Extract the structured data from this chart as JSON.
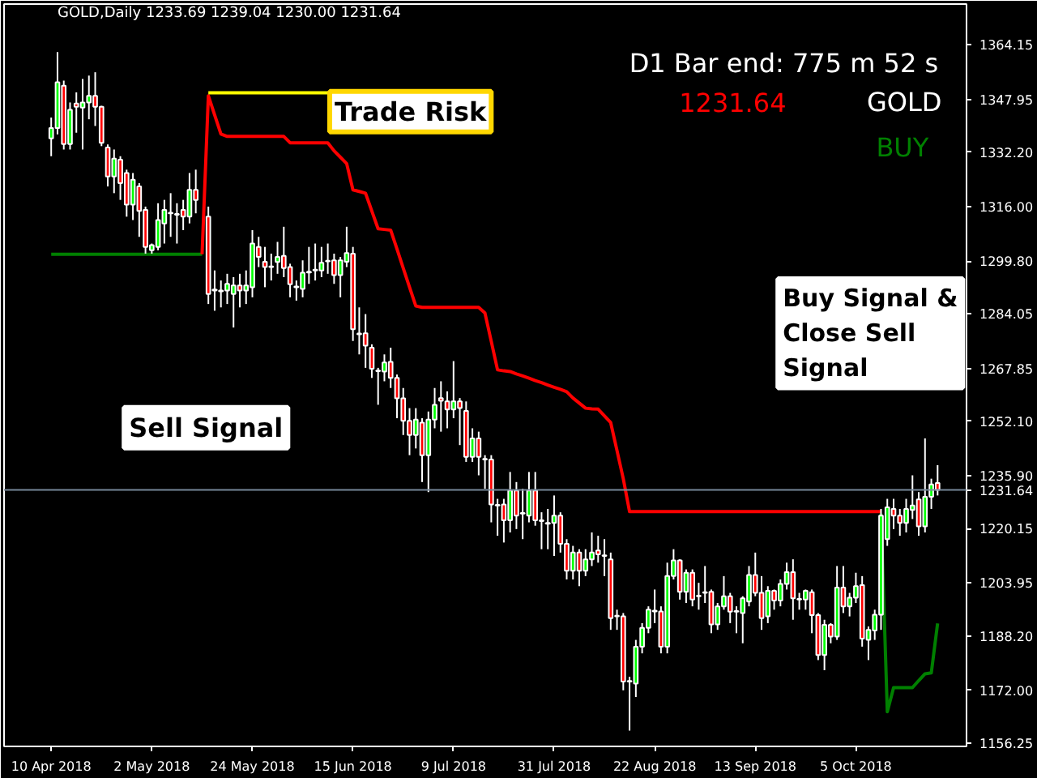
{
  "chart_data": {
    "type": "candlestick",
    "title": "D1 Bar end: 775 m 52 s",
    "annotations": [
      "GOLD,Daily 1233.69 1239.04 1230.00 1231.64",
      "1231.64",
      "GOLD",
      "BUY",
      "Trade Risk",
      "Sell Signal",
      "Buy Signal &\nClose   Sell\nSignal"
    ],
    "categories": [
      "10 Apr 2018",
      null,
      null,
      null,
      null,
      null,
      null,
      null,
      null,
      null,
      null,
      null,
      null,
      null,
      null,
      null,
      "2 May 2018",
      null,
      null,
      null,
      null,
      null,
      null,
      null,
      null,
      null,
      null,
      null,
      null,
      null,
      null,
      null,
      "24 May 2018",
      null,
      null,
      null,
      null,
      null,
      null,
      null,
      null,
      null,
      null,
      null,
      null,
      null,
      null,
      null,
      "15 Jun 2018",
      null,
      null,
      null,
      null,
      null,
      null,
      null,
      null,
      null,
      null,
      null,
      null,
      null,
      null,
      null,
      "9 Jul 2018",
      null,
      null,
      null,
      null,
      null,
      null,
      null,
      null,
      null,
      null,
      null,
      null,
      null,
      null,
      null,
      "31 Jul 2018",
      null,
      null,
      null,
      null,
      null,
      null,
      null,
      null,
      null,
      null,
      null,
      null,
      null,
      null,
      null,
      "22 Aug 2018",
      null,
      null,
      null,
      null,
      null,
      null,
      null,
      null,
      null,
      null,
      null,
      null,
      null,
      null,
      null,
      "13 Sep 2018",
      null,
      null,
      null,
      null,
      null,
      null,
      null,
      null,
      null,
      null,
      null,
      null,
      null,
      null,
      null,
      "5 Oct 2018",
      null,
      null,
      null,
      null,
      null,
      null,
      null,
      null,
      null,
      null,
      null,
      null,
      null
    ],
    "ohlc": [
      [
        1336.3,
        1342.5,
        1331,
        1339.4
      ],
      [
        1339.4,
        1362,
        1337.5,
        1353
      ],
      [
        1352,
        1353.5,
        1333,
        1334.6
      ],
      [
        1334.6,
        1347,
        1333,
        1344.8
      ],
      [
        1346.7,
        1350,
        1338,
        1345.7
      ],
      [
        1345.5,
        1354,
        1333,
        1347
      ],
      [
        1347,
        1355,
        1342,
        1349
      ],
      [
        1349,
        1356,
        1340,
        1345.7
      ],
      [
        1345.7,
        1346,
        1334,
        1335
      ],
      [
        1333.6,
        1334.5,
        1322,
        1325
      ],
      [
        1325,
        1333,
        1320,
        1330.3
      ],
      [
        1330,
        1331,
        1318,
        1323
      ],
      [
        1326,
        1327,
        1313,
        1316.6
      ],
      [
        1316.6,
        1326,
        1312,
        1324
      ],
      [
        1322,
        1323,
        1307,
        1314.7
      ],
      [
        1315,
        1316,
        1302,
        1304
      ],
      [
        1303,
        1305,
        1302,
        1304.5
      ],
      [
        1304,
        1317,
        1303,
        1312
      ],
      [
        1311,
        1318,
        1305,
        1315
      ],
      [
        1314,
        1320,
        1307,
        1314.2
      ],
      [
        1313.6,
        1317,
        1305,
        1313.8
      ],
      [
        1315,
        1318,
        1309,
        1313
      ],
      [
        1313,
        1326,
        1311,
        1321
      ],
      [
        1321,
        1327,
        1314,
        1318
      ],
      null,
      [
        1313,
        1316,
        1287,
        1290
      ],
      [
        1291,
        1297,
        1285,
        1291.3
      ],
      [
        1291,
        1294,
        1286,
        1290.8
      ],
      [
        1291,
        1296,
        1287,
        1293
      ],
      [
        1290,
        1295,
        1280,
        1292.5
      ],
      [
        1292.5,
        1296,
        1286,
        1291
      ],
      [
        1291,
        1297,
        1287,
        1292.5
      ],
      [
        1292,
        1309,
        1289,
        1305
      ],
      [
        1304,
        1307,
        1298,
        1301
      ],
      [
        1299.6,
        1304,
        1292,
        1298
      ],
      [
        1298,
        1302,
        1294,
        1298.2
      ],
      [
        1299.5,
        1305.5,
        1296,
        1301
      ],
      [
        1301.3,
        1310,
        1295,
        1297.7
      ],
      [
        1298,
        1299,
        1289,
        1292.9
      ],
      [
        1292,
        1294,
        1288,
        1292.2
      ],
      [
        1291.5,
        1300,
        1289,
        1296.3
      ],
      [
        1296.4,
        1304,
        1293,
        1296.6
      ],
      [
        1297,
        1305,
        1294,
        1297.2
      ],
      [
        1297,
        1304,
        1295,
        1299.3
      ],
      [
        1299.7,
        1305,
        1296,
        1299.9
      ],
      [
        1300,
        1302,
        1293,
        1295.6
      ],
      [
        1295.6,
        1301,
        1289,
        1300
      ],
      [
        1299.6,
        1310,
        1298,
        1302.2
      ],
      [
        1302,
        1304,
        1276,
        1279.5
      ],
      [
        1278,
        1286,
        1272,
        1278.2
      ],
      [
        1278.3,
        1284,
        1268,
        1274.6
      ],
      [
        1274,
        1275,
        1265,
        1267.7
      ],
      [
        1267,
        1268,
        1257,
        1267.2
      ],
      [
        1266.9,
        1272,
        1264,
        1269.6
      ],
      [
        1269.8,
        1274,
        1262,
        1265
      ],
      [
        1265,
        1266,
        1253,
        1258.9
      ],
      [
        1258.9,
        1262,
        1248,
        1252.2
      ],
      [
        1252.2,
        1256,
        1242,
        1248
      ],
      [
        1248,
        1256,
        1244,
        1252.6
      ],
      [
        1251.7,
        1253,
        1234,
        1242
      ],
      [
        1242,
        1255,
        1231,
        1252.6
      ],
      [
        1252.6,
        1262,
        1250,
        1257
      ],
      [
        1259,
        1264,
        1249,
        1258.2
      ],
      [
        1258,
        1261,
        1250,
        1255.6
      ],
      [
        1255.6,
        1270,
        1253,
        1258
      ],
      [
        1258,
        1259,
        1245,
        1256
      ],
      [
        1255.2,
        1258,
        1240,
        1241.5
      ],
      [
        1241.5,
        1250,
        1240,
        1247
      ],
      [
        1247,
        1249,
        1236,
        1241.5
      ],
      [
        1240.7,
        1242,
        1232,
        1240.9
      ],
      [
        1240.7,
        1242,
        1222,
        1227.3
      ],
      [
        1227,
        1229,
        1218,
        1227.2
      ],
      [
        1227.3,
        1229,
        1216,
        1222.6
      ],
      [
        1222.6,
        1237,
        1219,
        1231.5
      ],
      [
        1231.5,
        1234,
        1220,
        1224
      ],
      [
        1224.6,
        1232,
        1217,
        1224.8
      ],
      [
        1224,
        1237,
        1222,
        1231.5
      ],
      [
        1231.5,
        1237,
        1221,
        1222.6
      ],
      [
        1222.6,
        1225,
        1214,
        1222.4
      ],
      [
        1221.8,
        1226,
        1214,
        1221.6
      ],
      [
        1221.8,
        1230,
        1212,
        1224
      ],
      [
        1224,
        1225,
        1213,
        1215.6
      ],
      [
        1215.6,
        1217,
        1205,
        1207.6
      ],
      [
        1207.6,
        1215,
        1205,
        1213
      ],
      [
        1213,
        1214,
        1203,
        1207.6
      ],
      [
        1207.6,
        1214,
        1206,
        1211
      ],
      [
        1211,
        1219,
        1209,
        1213
      ],
      [
        1213.6,
        1218,
        1210,
        1212.5
      ],
      [
        1212,
        1217,
        1206,
        1212.2
      ],
      [
        1211,
        1213,
        1190,
        1193.5
      ],
      [
        1194,
        1196,
        1190,
        1194.2
      ],
      [
        1194,
        1195,
        1172,
        1174.6
      ],
      [
        1174.6,
        1176,
        1160,
        1174.8
      ],
      [
        1174,
        1187,
        1170,
        1185
      ],
      [
        1185,
        1192,
        1183,
        1190.6
      ],
      [
        1190.6,
        1197,
        1189,
        1196
      ],
      [
        1195.5,
        1202,
        1192,
        1195.7
      ],
      [
        1195.5,
        1197,
        1183,
        1185
      ],
      [
        1185,
        1210,
        1183,
        1206
      ],
      [
        1206,
        1214,
        1205,
        1210.7
      ],
      [
        1210.7,
        1211,
        1199,
        1201.3
      ],
      [
        1201.3,
        1208,
        1198,
        1207
      ],
      [
        1207,
        1208,
        1197,
        1199
      ],
      [
        1200,
        1204,
        1196,
        1200.2
      ],
      [
        1201,
        1209,
        1198,
        1201.2
      ],
      [
        1201.3,
        1202,
        1189,
        1191.6
      ],
      [
        1191.6,
        1198,
        1190,
        1197
      ],
      [
        1197,
        1206,
        1196,
        1200
      ],
      [
        1200,
        1201,
        1192,
        1195.4
      ],
      [
        1195.4,
        1197,
        1189,
        1195.6
      ],
      [
        1195,
        1200,
        1186,
        1199.4
      ],
      [
        1198.4,
        1209,
        1197,
        1206.3
      ],
      [
        1206.3,
        1213,
        1200,
        1201
      ],
      [
        1201,
        1206,
        1190,
        1193.5
      ],
      [
        1194,
        1203,
        1192,
        1201.6
      ],
      [
        1201.6,
        1202,
        1196,
        1198.7
      ],
      [
        1198.7,
        1205,
        1197,
        1203.7
      ],
      [
        1203.7,
        1210,
        1202,
        1207.2
      ],
      [
        1207.2,
        1211,
        1193,
        1199.4
      ],
      [
        1199,
        1201,
        1196,
        1199.2
      ],
      [
        1199,
        1202,
        1196,
        1201.6
      ],
      [
        1201.2,
        1202,
        1189,
        1194.4
      ],
      [
        1194.4,
        1195,
        1181,
        1182.5
      ],
      [
        1182.5,
        1193,
        1178,
        1191.5
      ],
      [
        1191.5,
        1192,
        1186,
        1188
      ],
      [
        1188,
        1209,
        1187,
        1202.6
      ],
      [
        1202.6,
        1209,
        1195,
        1197
      ],
      [
        1197,
        1201,
        1194,
        1199.6
      ],
      [
        1199.6,
        1207,
        1198,
        1203
      ],
      [
        1203.3,
        1206,
        1185,
        1187.4
      ],
      [
        1187,
        1191,
        1181,
        1190
      ],
      [
        1189.8,
        1196,
        1187,
        1194.5
      ],
      [
        1194.5,
        1226,
        1190,
        1224
      ],
      [
        1217,
        1229,
        1215,
        1226.5
      ],
      [
        1226,
        1229,
        1220,
        1224
      ],
      [
        1224,
        1226,
        1218,
        1221.8
      ],
      [
        1221.8,
        1229,
        1219,
        1226
      ],
      [
        1225.7,
        1236,
        1223,
        1227
      ],
      [
        1228.8,
        1231,
        1218,
        1220.8
      ],
      [
        1220.8,
        1247,
        1219,
        1229.6
      ],
      [
        1229.6,
        1235,
        1226,
        1233.3
      ],
      [
        1233.69,
        1239.04,
        1230.0,
        1231.64
      ]
    ],
    "series": [
      {
        "type": "line",
        "color": "#008000",
        "values": [
          1301.8,
          1301.8,
          1301.8,
          1301.8,
          1301.8,
          1301.8,
          1301.8,
          1301.8,
          1301.8,
          1301.8,
          1301.8,
          1301.8,
          1301.8,
          1301.8,
          1301.8,
          1301.8,
          1301.8,
          1301.8,
          1301.8,
          1301.8,
          1301.8,
          1301.8,
          1301.8,
          1301.8,
          1301.8,
          null,
          null,
          null,
          null,
          null,
          null,
          null,
          null,
          null,
          null,
          null,
          null,
          null,
          null,
          null,
          null,
          null,
          null,
          null,
          null,
          null,
          null,
          null,
          null,
          null,
          null,
          null,
          null,
          null,
          null,
          null,
          null,
          null,
          null,
          null,
          null,
          null,
          null,
          null,
          null,
          null,
          null,
          null,
          null,
          null,
          null,
          null,
          null,
          null,
          null,
          null,
          null,
          null,
          null,
          null,
          null,
          null,
          null,
          null,
          null,
          null,
          null,
          null,
          null,
          null,
          null,
          null,
          null,
          null,
          null,
          null,
          null,
          null,
          null,
          null,
          null,
          null,
          null,
          null,
          null,
          null,
          null,
          null,
          null,
          null,
          null,
          null,
          null,
          null,
          null,
          null,
          null,
          null,
          null,
          null,
          null,
          null,
          null,
          null,
          null,
          null,
          null,
          null,
          null,
          null,
          null,
          null,
          null,
          null,
          null,
          null,
          null,
          null,
          null,
          null,
          null,
          null
        ]
      },
      {
        "type": "line",
        "color": "#ff0000",
        "values": [
          null,
          null,
          null,
          null,
          null,
          null,
          null,
          null,
          null,
          null,
          null,
          null,
          null,
          null,
          null,
          null,
          null,
          null,
          null,
          null,
          null,
          null,
          null,
          null,
          1301.8,
          1349,
          1343.3,
          1337.6,
          1336.9,
          1336.9,
          1336.9,
          1336.9,
          1336.9,
          1336.9,
          1336.9,
          1336.9,
          1336.9,
          1336.9,
          1335,
          1335,
          1335,
          1335,
          1335,
          1335,
          1335,
          1332.6,
          1330.7,
          1328.8,
          1321,
          1320.5,
          1320,
          1314.7,
          1309.4,
          1309.2,
          1309,
          1303.4,
          1297.7,
          1292,
          1286.4,
          1286,
          1286,
          1286,
          1286,
          1286,
          1286,
          1286,
          1286,
          1286,
          1286,
          1284.3,
          1275.9,
          1267.4,
          1267.1,
          1266.9,
          1266.2,
          1265.6,
          1264.9,
          1264.2,
          1263.6,
          1262.9,
          1262.2,
          1261.6,
          1260.9,
          1259,
          1257.5,
          1256,
          1255.8,
          1255.7,
          1253.7,
          1251.7,
          1243.4,
          1235,
          1225.2,
          1225.2,
          1225.2,
          1225.2,
          1225.2,
          1225.2,
          1225.2,
          1225.2,
          1225.2,
          1225.2,
          1225.2,
          1225.2,
          1225.2,
          1225.2,
          1225.2,
          1225.2,
          1225.2,
          1225.2,
          1225.2,
          1225.2,
          1225.2,
          1225.2,
          1225.2,
          1225.2,
          1225.2,
          1225.2,
          1225.2,
          1225.2,
          1225.2,
          1225.2,
          1225.2,
          1225.2,
          1225.2,
          1225.2,
          1225.2,
          1225.2,
          1225.2,
          1225.2,
          1225.2,
          1225.2,
          1225.2,
          null,
          null,
          null,
          null,
          null,
          null,
          null,
          null,
          null
        ]
      },
      {
        "type": "line",
        "color": "#ffff00",
        "values": [
          null,
          null,
          null,
          null,
          null,
          null,
          null,
          null,
          null,
          null,
          null,
          null,
          null,
          null,
          null,
          null,
          null,
          null,
          null,
          null,
          null,
          null,
          null,
          null,
          null,
          1349.9,
          1349.9,
          1349.9,
          1349.9,
          1349.9,
          1349.9,
          1349.9,
          1349.9,
          1349.9,
          1349.9,
          1349.9,
          1349.9,
          1349.9,
          1349.9,
          1349.9,
          1349.9,
          1349.9,
          1349.9,
          1349.9,
          1349.9,
          null,
          null,
          null,
          null,
          null,
          null,
          null,
          null,
          null,
          null,
          null,
          null,
          null,
          null,
          null,
          null,
          null,
          null,
          null,
          null,
          null,
          null,
          null,
          null,
          null,
          null,
          null,
          null,
          null,
          null,
          null,
          null,
          null,
          null,
          null,
          null,
          null,
          null,
          null,
          null,
          null,
          null,
          null,
          null,
          null,
          null,
          null,
          null,
          null,
          null,
          null,
          null,
          null,
          null,
          null,
          null,
          null,
          null,
          null,
          null,
          null,
          null,
          null,
          null,
          null,
          null,
          null,
          null,
          null,
          null,
          null,
          null,
          null,
          null,
          null,
          null,
          null,
          null,
          null,
          null,
          null,
          null,
          null,
          null,
          null,
          null,
          null,
          null,
          null,
          null,
          null,
          null,
          null,
          null,
          null,
          null,
          null
        ]
      },
      {
        "type": "line",
        "color": "#008000",
        "values": [
          null,
          null,
          null,
          null,
          null,
          null,
          null,
          null,
          null,
          null,
          null,
          null,
          null,
          null,
          null,
          null,
          null,
          null,
          null,
          null,
          null,
          null,
          null,
          null,
          null,
          null,
          null,
          null,
          null,
          null,
          null,
          null,
          null,
          null,
          null,
          null,
          null,
          null,
          null,
          null,
          null,
          null,
          null,
          null,
          null,
          null,
          null,
          null,
          null,
          null,
          null,
          null,
          null,
          null,
          null,
          null,
          null,
          null,
          null,
          null,
          null,
          null,
          null,
          null,
          null,
          null,
          null,
          null,
          null,
          null,
          null,
          null,
          null,
          null,
          null,
          null,
          null,
          null,
          null,
          null,
          null,
          null,
          null,
          null,
          null,
          null,
          null,
          null,
          null,
          null,
          null,
          null,
          null,
          null,
          null,
          null,
          null,
          null,
          null,
          null,
          null,
          null,
          null,
          null,
          null,
          null,
          null,
          null,
          null,
          null,
          null,
          null,
          null,
          null,
          null,
          null,
          null,
          null,
          null,
          null,
          null,
          null,
          null,
          null,
          null,
          null,
          null,
          null,
          null,
          null,
          null,
          null,
          1224.6,
          1165.6,
          1172.8,
          1172.8,
          1172.8,
          1172.8,
          1174.9,
          1176.9,
          1177.2,
          1191.9
        ]
      }
    ],
    "ref_lines": [
      {
        "axis": "y",
        "value": 1231.64,
        "label": "1231.64",
        "color": "#778899"
      }
    ],
    "ylim": [
      1155.3,
      1376.3
    ],
    "yticks": [
      1364.15,
      1347.95,
      {
        "value": 1332.2,
        "label": "1332.20"
      },
      {
        "value": 1316,
        "label": "1316.00"
      },
      {
        "value": 1299.8,
        "label": "1299.80"
      },
      1284.05,
      1267.85,
      {
        "value": 1252.1,
        "label": "1252.10"
      },
      {
        "value": 1235.9,
        "label": "1235.90"
      },
      1220.15,
      1203.95,
      {
        "value": 1188.2,
        "label": "1188.20"
      },
      {
        "value": 1172,
        "label": "1172.00"
      },
      1156.25
    ],
    "grid": false
  }
}
